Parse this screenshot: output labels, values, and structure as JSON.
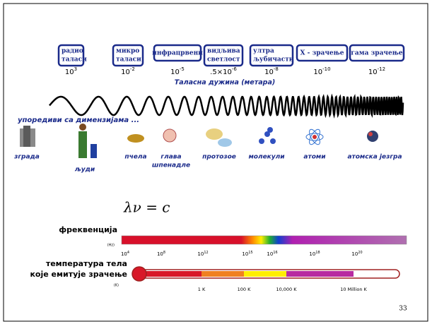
{
  "bands": [
    {
      "label": [
        "радио",
        "таласи"
      ],
      "wavelength": {
        "base": "10",
        "exp": "3"
      }
    },
    {
      "label": [
        "микро",
        "таласи"
      ],
      "wavelength": {
        "base": "10",
        "exp": "-2"
      }
    },
    {
      "label": [
        "инфрацрвени"
      ],
      "wavelength": {
        "base": "10",
        "exp": "-5"
      }
    },
    {
      "label": [
        "видљива",
        "светлост"
      ],
      "wavelength": {
        "prefix": ".5×",
        "base": "10",
        "exp": "-6"
      }
    },
    {
      "label": [
        "ултра",
        "љубичасти"
      ],
      "wavelength": {
        "base": "10",
        "exp": "-8"
      }
    },
    {
      "label": [
        "X  - зрачење"
      ],
      "wavelength": {
        "base": "10",
        "exp": "-10"
      }
    },
    {
      "label": [
        "гама зрачење"
      ],
      "wavelength": {
        "base": "10",
        "exp": "-12"
      }
    }
  ],
  "wavelength_caption": "Таласна дужина (метара)",
  "compare_caption": "упоредиви са димензијама ...",
  "objects": [
    [
      "зграда"
    ],
    [
      "људи"
    ],
    [
      "пчела"
    ],
    [
      "глава",
      "шпенадле"
    ],
    [
      "протозое"
    ],
    [
      "молекули"
    ],
    [
      "атоми"
    ],
    [
      "атомска језгра"
    ]
  ],
  "formula": "λν = c",
  "frequency": {
    "label": "фреквенција",
    "unit": "(Hz)",
    "ticks": [
      {
        "base": "10",
        "exp": "4"
      },
      {
        "base": "10",
        "exp": "8"
      },
      {
        "base": "10",
        "exp": "12"
      },
      {
        "base": "10",
        "exp": "15"
      },
      {
        "base": "10",
        "exp": "16"
      },
      {
        "base": "10",
        "exp": "18"
      },
      {
        "base": "10",
        "exp": "20"
      }
    ]
  },
  "temperature": {
    "label": [
      "температура тела",
      "које емитује зрачење"
    ],
    "unit": "(K)",
    "ticks": [
      "1 K",
      "100 K",
      "10,000 K",
      "10 Million K"
    ]
  },
  "page_number": "33"
}
